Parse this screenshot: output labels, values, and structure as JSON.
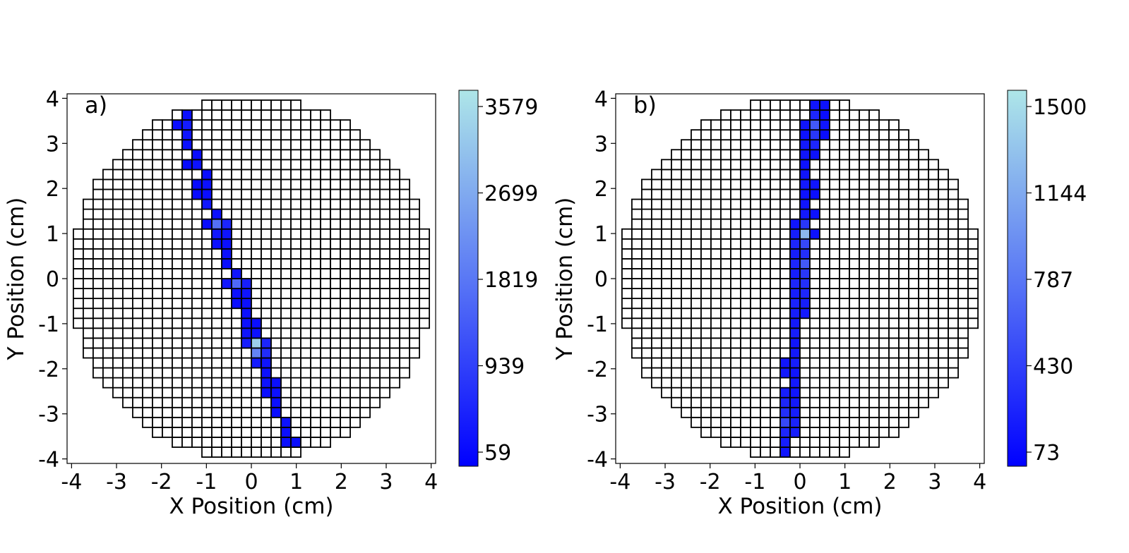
{
  "chart_data": [
    {
      "type": "heatmap",
      "panel_label": "a)",
      "xlabel": "X Position (cm)",
      "ylabel": "Y Position (cm)",
      "xlim": [
        -4.1,
        4.1
      ],
      "ylim": [
        -4.1,
        4.1
      ],
      "xticks": [
        "-4",
        "-3",
        "-2",
        "-1",
        "0",
        "1",
        "2",
        "3",
        "4"
      ],
      "yticks": [
        "4",
        "3",
        "2",
        "1",
        "0",
        "-1",
        "-2",
        "-3",
        "-4"
      ],
      "pixel_pitch_cm": 0.22,
      "detector_radius_cm": 4.0,
      "colorbar": {
        "min": 59,
        "max": 3579,
        "ticks": [
          "3579",
          "2699",
          "1819",
          "939",
          "59"
        ]
      },
      "hits": [
        {
          "x": -1.54,
          "y": 3.63,
          "v": 300
        },
        {
          "x": -1.76,
          "y": 3.41,
          "v": 250
        },
        {
          "x": -1.54,
          "y": 3.41,
          "v": 450
        },
        {
          "x": -1.54,
          "y": 3.19,
          "v": 350
        },
        {
          "x": -1.54,
          "y": 2.97,
          "v": 280
        },
        {
          "x": -1.32,
          "y": 2.75,
          "v": 250
        },
        {
          "x": -1.54,
          "y": 2.53,
          "v": 200
        },
        {
          "x": -1.32,
          "y": 2.53,
          "v": 320
        },
        {
          "x": -1.1,
          "y": 2.31,
          "v": 260
        },
        {
          "x": -1.32,
          "y": 2.09,
          "v": 210
        },
        {
          "x": -1.1,
          "y": 2.09,
          "v": 300
        },
        {
          "x": -1.32,
          "y": 1.87,
          "v": 200
        },
        {
          "x": -1.1,
          "y": 1.87,
          "v": 250
        },
        {
          "x": -1.1,
          "y": 1.65,
          "v": 400
        },
        {
          "x": -0.88,
          "y": 1.43,
          "v": 300
        },
        {
          "x": -1.1,
          "y": 1.21,
          "v": 250
        },
        {
          "x": -0.88,
          "y": 1.21,
          "v": 1700
        },
        {
          "x": -0.66,
          "y": 1.21,
          "v": 600
        },
        {
          "x": -0.88,
          "y": 0.99,
          "v": 400
        },
        {
          "x": -0.66,
          "y": 0.99,
          "v": 350
        },
        {
          "x": -0.88,
          "y": 0.77,
          "v": 300
        },
        {
          "x": -0.66,
          "y": 0.77,
          "v": 280
        },
        {
          "x": -0.66,
          "y": 0.55,
          "v": 300
        },
        {
          "x": -0.66,
          "y": 0.33,
          "v": 250
        },
        {
          "x": -0.44,
          "y": 0.11,
          "v": 350
        },
        {
          "x": -0.66,
          "y": -0.11,
          "v": 400
        },
        {
          "x": -0.44,
          "y": -0.11,
          "v": 1600
        },
        {
          "x": -0.22,
          "y": -0.11,
          "v": 500
        },
        {
          "x": -0.44,
          "y": -0.33,
          "v": 300
        },
        {
          "x": -0.22,
          "y": -0.33,
          "v": 350
        },
        {
          "x": -0.44,
          "y": -0.55,
          "v": 250
        },
        {
          "x": -0.22,
          "y": -0.55,
          "v": 300
        },
        {
          "x": -0.22,
          "y": -0.77,
          "v": 280
        },
        {
          "x": -0.22,
          "y": -0.99,
          "v": 300
        },
        {
          "x": 0.0,
          "y": -0.99,
          "v": 260
        },
        {
          "x": -0.22,
          "y": -1.21,
          "v": 350
        },
        {
          "x": 0.0,
          "y": -1.21,
          "v": 300
        },
        {
          "x": -0.22,
          "y": -1.43,
          "v": 500
        },
        {
          "x": 0.0,
          "y": -1.43,
          "v": 3200
        },
        {
          "x": 0.22,
          "y": -1.43,
          "v": 600
        },
        {
          "x": 0.0,
          "y": -1.65,
          "v": 2000
        },
        {
          "x": 0.22,
          "y": -1.65,
          "v": 700
        },
        {
          "x": 0.0,
          "y": -1.87,
          "v": 450
        },
        {
          "x": 0.22,
          "y": -1.87,
          "v": 350
        },
        {
          "x": 0.22,
          "y": -2.09,
          "v": 300
        },
        {
          "x": 0.22,
          "y": -2.31,
          "v": 320
        },
        {
          "x": 0.44,
          "y": -2.31,
          "v": 280
        },
        {
          "x": 0.22,
          "y": -2.53,
          "v": 260
        },
        {
          "x": 0.44,
          "y": -2.53,
          "v": 300
        },
        {
          "x": 0.44,
          "y": -2.75,
          "v": 280
        },
        {
          "x": 0.44,
          "y": -2.97,
          "v": 250
        },
        {
          "x": 0.66,
          "y": -3.19,
          "v": 320
        },
        {
          "x": 0.66,
          "y": -3.41,
          "v": 280
        },
        {
          "x": 0.66,
          "y": -3.63,
          "v": 300
        },
        {
          "x": 0.88,
          "y": -3.63,
          "v": 260
        }
      ]
    },
    {
      "type": "heatmap",
      "panel_label": "b)",
      "xlabel": "X Position (cm)",
      "ylabel": "Y Position (cm)",
      "xlim": [
        -4.1,
        4.1
      ],
      "ylim": [
        -4.1,
        4.1
      ],
      "xticks": [
        "-4",
        "-3",
        "-2",
        "-1",
        "0",
        "1",
        "2",
        "3",
        "4"
      ],
      "yticks": [
        "4",
        "3",
        "2",
        "1",
        "0",
        "-1",
        "-2",
        "-3",
        "-4"
      ],
      "pixel_pitch_cm": 0.22,
      "detector_radius_cm": 4.0,
      "colorbar": {
        "min": 73,
        "max": 1500,
        "ticks": [
          "1500",
          "1144",
          "787",
          "430",
          "73"
        ]
      },
      "hits": [
        {
          "x": 0.33,
          "y": 3.85,
          "v": 200
        },
        {
          "x": 0.55,
          "y": 3.85,
          "v": 180
        },
        {
          "x": 0.33,
          "y": 3.63,
          "v": 300
        },
        {
          "x": 0.55,
          "y": 3.63,
          "v": 150
        },
        {
          "x": 0.11,
          "y": 3.41,
          "v": 200
        },
        {
          "x": 0.33,
          "y": 3.41,
          "v": 600
        },
        {
          "x": 0.55,
          "y": 3.41,
          "v": 200
        },
        {
          "x": 0.11,
          "y": 3.19,
          "v": 180
        },
        {
          "x": 0.33,
          "y": 3.19,
          "v": 400
        },
        {
          "x": 0.55,
          "y": 3.19,
          "v": 150
        },
        {
          "x": 0.11,
          "y": 2.97,
          "v": 220
        },
        {
          "x": 0.33,
          "y": 2.97,
          "v": 300
        },
        {
          "x": 0.11,
          "y": 2.75,
          "v": 200
        },
        {
          "x": 0.33,
          "y": 2.75,
          "v": 180
        },
        {
          "x": 0.11,
          "y": 2.53,
          "v": 180
        },
        {
          "x": 0.11,
          "y": 2.31,
          "v": 200
        },
        {
          "x": 0.11,
          "y": 2.09,
          "v": 220
        },
        {
          "x": 0.33,
          "y": 2.09,
          "v": 200
        },
        {
          "x": 0.11,
          "y": 1.87,
          "v": 180
        },
        {
          "x": 0.33,
          "y": 1.87,
          "v": 160
        },
        {
          "x": 0.11,
          "y": 1.65,
          "v": 200
        },
        {
          "x": 0.11,
          "y": 1.43,
          "v": 220
        },
        {
          "x": 0.33,
          "y": 1.43,
          "v": 180
        },
        {
          "x": -0.11,
          "y": 1.21,
          "v": 200
        },
        {
          "x": 0.11,
          "y": 1.21,
          "v": 400
        },
        {
          "x": -0.11,
          "y": 0.99,
          "v": 250
        },
        {
          "x": 0.11,
          "y": 0.99,
          "v": 1200
        },
        {
          "x": 0.33,
          "y": 0.99,
          "v": 180
        },
        {
          "x": -0.11,
          "y": 0.77,
          "v": 300
        },
        {
          "x": 0.11,
          "y": 0.77,
          "v": 500
        },
        {
          "x": -0.11,
          "y": 0.55,
          "v": 250
        },
        {
          "x": 0.11,
          "y": 0.55,
          "v": 350
        },
        {
          "x": -0.11,
          "y": 0.33,
          "v": 300
        },
        {
          "x": 0.11,
          "y": 0.33,
          "v": 600
        },
        {
          "x": -0.11,
          "y": 0.11,
          "v": 250
        },
        {
          "x": 0.11,
          "y": 0.11,
          "v": 400
        },
        {
          "x": -0.11,
          "y": -0.11,
          "v": 300
        },
        {
          "x": 0.11,
          "y": -0.11,
          "v": 350
        },
        {
          "x": -0.11,
          "y": -0.33,
          "v": 250
        },
        {
          "x": 0.11,
          "y": -0.33,
          "v": 300
        },
        {
          "x": -0.11,
          "y": -0.55,
          "v": 280
        },
        {
          "x": 0.11,
          "y": -0.55,
          "v": 250
        },
        {
          "x": -0.11,
          "y": -0.77,
          "v": 250
        },
        {
          "x": 0.11,
          "y": -0.77,
          "v": 220
        },
        {
          "x": -0.11,
          "y": -0.99,
          "v": 220
        },
        {
          "x": -0.11,
          "y": -1.21,
          "v": 250
        },
        {
          "x": -0.11,
          "y": -1.43,
          "v": 200
        },
        {
          "x": -0.11,
          "y": -1.65,
          "v": 220
        },
        {
          "x": -0.33,
          "y": -1.87,
          "v": 200
        },
        {
          "x": -0.11,
          "y": -1.87,
          "v": 250
        },
        {
          "x": -0.33,
          "y": -2.09,
          "v": 220
        },
        {
          "x": -0.11,
          "y": -2.09,
          "v": 200
        },
        {
          "x": -0.11,
          "y": -2.31,
          "v": 220
        },
        {
          "x": -0.33,
          "y": -2.53,
          "v": 250
        },
        {
          "x": -0.11,
          "y": -2.53,
          "v": 200
        },
        {
          "x": -0.33,
          "y": -2.75,
          "v": 300
        },
        {
          "x": -0.11,
          "y": -2.75,
          "v": 220
        },
        {
          "x": -0.33,
          "y": -2.97,
          "v": 350
        },
        {
          "x": -0.11,
          "y": -2.97,
          "v": 250
        },
        {
          "x": -0.33,
          "y": -3.19,
          "v": 500
        },
        {
          "x": -0.11,
          "y": -3.19,
          "v": 280
        },
        {
          "x": -0.33,
          "y": -3.41,
          "v": 300
        },
        {
          "x": -0.11,
          "y": -3.41,
          "v": 250
        },
        {
          "x": -0.33,
          "y": -3.63,
          "v": 250
        },
        {
          "x": -0.33,
          "y": -3.85,
          "v": 200
        }
      ]
    }
  ],
  "colors": {
    "cmap_low": "#0000ff",
    "cmap_high": "#aee6e8",
    "grid_line": "#000000",
    "background": "#ffffff"
  }
}
